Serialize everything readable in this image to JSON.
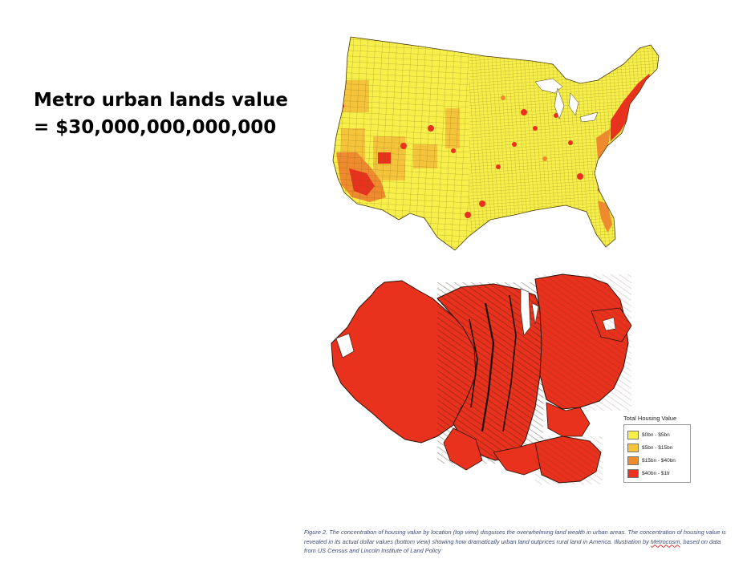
{
  "headline": {
    "line1": "Metro urban lands value",
    "line2": "= $30,000,000,000,000"
  },
  "legend": {
    "title": "Total Housing Value",
    "items": [
      {
        "label": "$0bn - $5bn",
        "color": "#f7ef4a"
      },
      {
        "label": "$5bn - $15bn",
        "color": "#f5c43a"
      },
      {
        "label": "$15bn - $40bn",
        "color": "#ef8a2e"
      },
      {
        "label": "$40bn - $1tr",
        "color": "#e8321e"
      }
    ]
  },
  "caption": {
    "part1": "Figure 2. The concentration of housing value by location (top view) disguises the overwhelming land wealth in urban areas. The concentration of housing value is revealed in its actual dollar values (bottom view) showing how dramatically urban land outprices rural land in America. Illustration by ",
    "brand": "Metrocosm",
    "part2": ", based on data from US Census and Lincoln Institute of Land Policy"
  },
  "colors": {
    "band_low": "#f7ef4a",
    "band_mid_low": "#f5c43a",
    "band_mid_high": "#ef8a2e",
    "band_high": "#e8321e",
    "caption_text": "#3f4d73"
  }
}
